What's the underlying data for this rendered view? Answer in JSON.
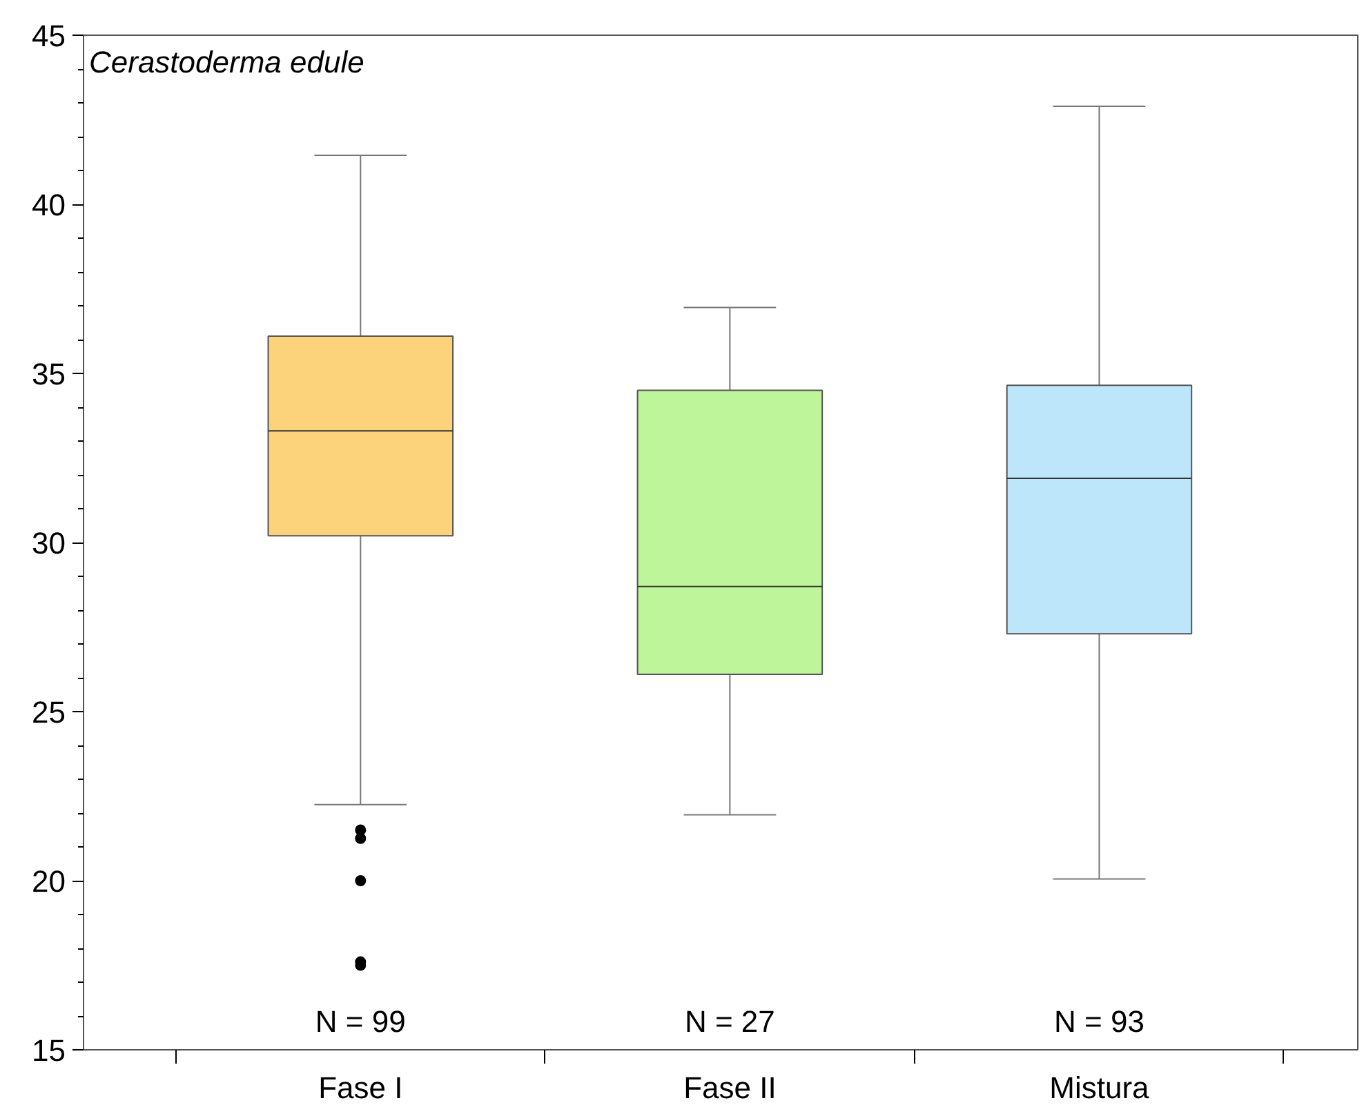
{
  "chart_data": {
    "type": "box",
    "title": "Cerastoderma edule",
    "categories": [
      "Fase I",
      "Fase II",
      "Mistura"
    ],
    "colors": [
      "#fcd27a",
      "#bff59a",
      "#bde6fb"
    ],
    "boxes": [
      {
        "low": 22.25,
        "q1": 30.2,
        "median": 33.3,
        "q3": 36.1,
        "high": 41.45,
        "outliers": [
          21.5,
          21.25,
          20.0,
          17.6,
          17.5
        ]
      },
      {
        "low": 21.95,
        "q1": 26.1,
        "median": 28.7,
        "q3": 34.5,
        "high": 36.95
      },
      {
        "low": 20.05,
        "q1": 27.3,
        "median": 31.9,
        "q3": 34.65,
        "high": 42.9
      }
    ],
    "ylim": [
      15,
      45
    ],
    "yticks": [
      15,
      20,
      25,
      30,
      35,
      40,
      45
    ],
    "annotations": [
      "N = 99",
      "N = 27",
      "N = 93"
    ],
    "grid": false
  }
}
